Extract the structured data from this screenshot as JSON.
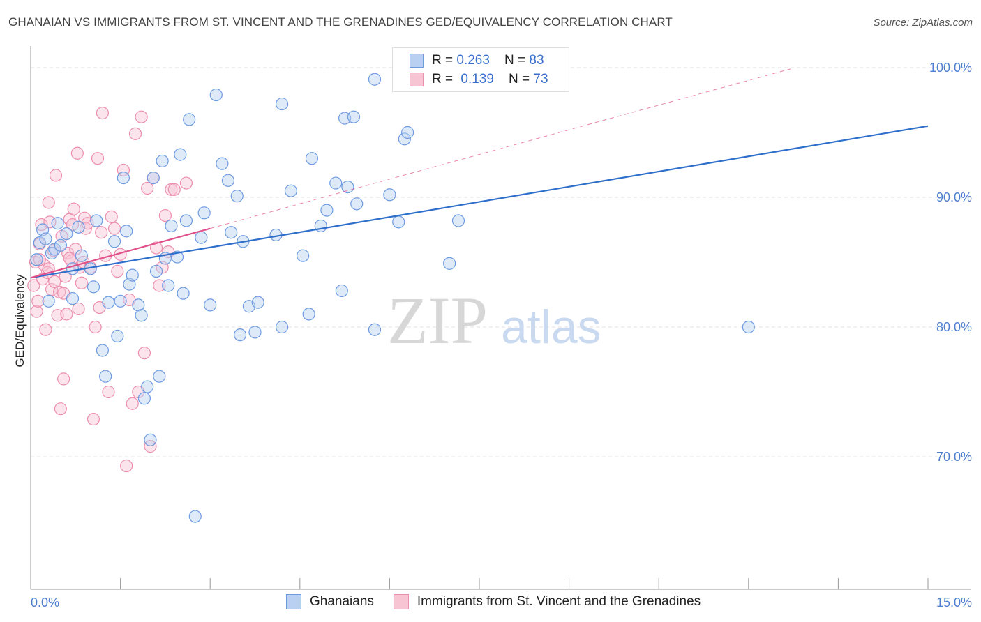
{
  "title": "GHANAIAN VS IMMIGRANTS FROM ST. VINCENT AND THE GRENADINES GED/EQUIVALENCY CORRELATION CHART",
  "source": "Source: ZipAtlas.com",
  "watermark": {
    "zip": "ZIP",
    "atlas": "atlas"
  },
  "legend": {
    "r_label": "R = ",
    "n_label": "N = ",
    "series": [
      {
        "r": "0.263",
        "n": "83"
      },
      {
        "r": "0.139",
        "n": "73"
      }
    ]
  },
  "colors": {
    "blue": "#6d9be0",
    "blue_fill": "#b9d0f2",
    "blue_line": "#2f6fcc",
    "pink": "#ec8fae",
    "pink_fill": "#f7c4d4",
    "pink_line": "#e0508a",
    "grid": "#e2e2e2",
    "tick_text": "#4f7fd0"
  },
  "chart_data": {
    "type": "scatter",
    "title": "GHANAIAN VS IMMIGRANTS FROM ST. VINCENT AND THE GRENADINES GED/EQUIVALENCY CORRELATION CHART",
    "xlabel": "",
    "ylabel": "GED/Equivalency",
    "xlim": [
      0,
      15
    ],
    "ylim": [
      60,
      101.5
    ],
    "x_ticks": [
      "0.0%",
      "15.0%"
    ],
    "y_ticks": [
      {
        "value": 100,
        "label": "100.0%"
      },
      {
        "value": 90,
        "label": "90.0%"
      },
      {
        "value": 80,
        "label": "80.0%"
      },
      {
        "value": 70,
        "label": "70.0%"
      }
    ],
    "grid": true,
    "legend_position": "top-center",
    "series": [
      {
        "name": "Ghanaians",
        "r": 0.263,
        "n": 83,
        "trend": {
          "x": [
            0.0,
            15.0
          ],
          "y": [
            83.8,
            95.5
          ],
          "style": "solid"
        },
        "points": [
          [
            0.1,
            85.2
          ],
          [
            0.15,
            86.5
          ],
          [
            0.2,
            87.5
          ],
          [
            0.25,
            86.8
          ],
          [
            0.3,
            82.0
          ],
          [
            0.35,
            85.7
          ],
          [
            0.4,
            86.0
          ],
          [
            0.45,
            88.0
          ],
          [
            0.5,
            86.3
          ],
          [
            0.6,
            87.2
          ],
          [
            0.7,
            84.5
          ],
          [
            0.7,
            82.2
          ],
          [
            0.8,
            87.7
          ],
          [
            0.85,
            85.5
          ],
          [
            1.0,
            84.5
          ],
          [
            1.05,
            83.1
          ],
          [
            1.1,
            88.2
          ],
          [
            1.2,
            78.2
          ],
          [
            1.25,
            76.2
          ],
          [
            1.3,
            81.9
          ],
          [
            1.4,
            86.6
          ],
          [
            1.45,
            79.3
          ],
          [
            1.5,
            82.0
          ],
          [
            1.55,
            91.5
          ],
          [
            1.6,
            87.4
          ],
          [
            1.65,
            83.3
          ],
          [
            1.7,
            84.0
          ],
          [
            1.8,
            81.7
          ],
          [
            1.85,
            80.9
          ],
          [
            1.9,
            74.5
          ],
          [
            1.95,
            75.4
          ],
          [
            2.0,
            71.3
          ],
          [
            2.05,
            91.5
          ],
          [
            2.15,
            76.2
          ],
          [
            2.2,
            92.8
          ],
          [
            2.25,
            85.3
          ],
          [
            2.3,
            83.2
          ],
          [
            2.35,
            87.8
          ],
          [
            2.45,
            85.4
          ],
          [
            2.5,
            93.3
          ],
          [
            2.55,
            82.6
          ],
          [
            2.6,
            88.2
          ],
          [
            2.65,
            96.0
          ],
          [
            2.75,
            65.4
          ],
          [
            2.85,
            86.9
          ],
          [
            2.9,
            88.8
          ],
          [
            3.0,
            81.7
          ],
          [
            3.1,
            97.9
          ],
          [
            3.2,
            92.6
          ],
          [
            3.3,
            91.3
          ],
          [
            3.35,
            87.3
          ],
          [
            3.45,
            90.1
          ],
          [
            3.5,
            79.4
          ],
          [
            3.55,
            86.6
          ],
          [
            3.65,
            81.6
          ],
          [
            3.75,
            79.6
          ],
          [
            3.8,
            81.9
          ],
          [
            4.1,
            87.1
          ],
          [
            4.2,
            97.2
          ],
          [
            4.2,
            80.0
          ],
          [
            4.35,
            90.5
          ],
          [
            4.55,
            85.5
          ],
          [
            4.7,
            93.0
          ],
          [
            4.65,
            81.0
          ],
          [
            4.85,
            87.8
          ],
          [
            4.95,
            89.0
          ],
          [
            5.1,
            91.1
          ],
          [
            5.2,
            82.8
          ],
          [
            5.25,
            96.1
          ],
          [
            5.3,
            90.8
          ],
          [
            5.4,
            96.2
          ],
          [
            5.45,
            89.5
          ],
          [
            5.75,
            79.8
          ],
          [
            5.75,
            99.1
          ],
          [
            6.0,
            90.2
          ],
          [
            6.15,
            88.1
          ],
          [
            6.25,
            94.5
          ],
          [
            6.3,
            95.0
          ],
          [
            7.0,
            84.9
          ],
          [
            7.15,
            88.2
          ],
          [
            12.0,
            80.0
          ],
          [
            6.95,
            100.4
          ],
          [
            2.1,
            84.3
          ]
        ]
      },
      {
        "name": "Immigrants from St. Vincent and the Grenadines",
        "r": 0.139,
        "n": 73,
        "trend": {
          "x": [
            0.0,
            3.0
          ],
          "y": [
            83.8,
            87.6
          ],
          "style": "solid"
        },
        "trend_extension": {
          "x": [
            3.0,
            12.7
          ],
          "y": [
            87.6,
            99.9
          ],
          "style": "dashed"
        },
        "points": [
          [
            0.05,
            83.2
          ],
          [
            0.08,
            85.0
          ],
          [
            0.1,
            81.2
          ],
          [
            0.12,
            82.0
          ],
          [
            0.15,
            86.4
          ],
          [
            0.18,
            87.9
          ],
          [
            0.2,
            83.7
          ],
          [
            0.22,
            84.8
          ],
          [
            0.25,
            79.8
          ],
          [
            0.28,
            84.2
          ],
          [
            0.3,
            89.6
          ],
          [
            0.32,
            88.1
          ],
          [
            0.35,
            82.9
          ],
          [
            0.38,
            85.9
          ],
          [
            0.4,
            83.5
          ],
          [
            0.42,
            91.7
          ],
          [
            0.45,
            80.9
          ],
          [
            0.48,
            82.7
          ],
          [
            0.5,
            73.7
          ],
          [
            0.52,
            87.0
          ],
          [
            0.55,
            76.0
          ],
          [
            0.58,
            83.9
          ],
          [
            0.6,
            81.0
          ],
          [
            0.62,
            85.7
          ],
          [
            0.65,
            88.3
          ],
          [
            0.68,
            85.1
          ],
          [
            0.7,
            87.9
          ],
          [
            0.72,
            89.1
          ],
          [
            0.75,
            86.0
          ],
          [
            0.78,
            93.4
          ],
          [
            0.8,
            81.4
          ],
          [
            0.82,
            84.6
          ],
          [
            0.85,
            83.4
          ],
          [
            0.88,
            85.0
          ],
          [
            0.9,
            88.4
          ],
          [
            0.92,
            87.6
          ],
          [
            0.95,
            88.0
          ],
          [
            1.0,
            84.6
          ],
          [
            1.05,
            72.9
          ],
          [
            1.08,
            80.0
          ],
          [
            1.12,
            93.0
          ],
          [
            1.15,
            81.5
          ],
          [
            1.18,
            87.3
          ],
          [
            1.2,
            96.5
          ],
          [
            1.25,
            85.5
          ],
          [
            1.3,
            75.0
          ],
          [
            1.35,
            88.5
          ],
          [
            1.4,
            87.6
          ],
          [
            1.45,
            84.3
          ],
          [
            1.5,
            85.6
          ],
          [
            1.55,
            92.1
          ],
          [
            1.6,
            69.3
          ],
          [
            1.65,
            82.1
          ],
          [
            1.7,
            74.1
          ],
          [
            1.75,
            94.9
          ],
          [
            1.8,
            75.0
          ],
          [
            1.85,
            96.2
          ],
          [
            1.9,
            78.0
          ],
          [
            1.95,
            90.7
          ],
          [
            2.0,
            70.8
          ],
          [
            2.05,
            91.5
          ],
          [
            2.1,
            86.1
          ],
          [
            2.15,
            83.2
          ],
          [
            2.2,
            84.6
          ],
          [
            2.25,
            88.6
          ],
          [
            2.3,
            85.8
          ],
          [
            2.35,
            90.6
          ],
          [
            2.4,
            90.6
          ],
          [
            2.6,
            91.1
          ],
          [
            0.15,
            85.2
          ],
          [
            0.3,
            84.5
          ],
          [
            0.55,
            82.6
          ],
          [
            0.65,
            85.3
          ]
        ]
      }
    ]
  },
  "bottom_legend": [
    {
      "label": "Ghanaians"
    },
    {
      "label": "Immigrants from St. Vincent and the Grenadines"
    }
  ]
}
